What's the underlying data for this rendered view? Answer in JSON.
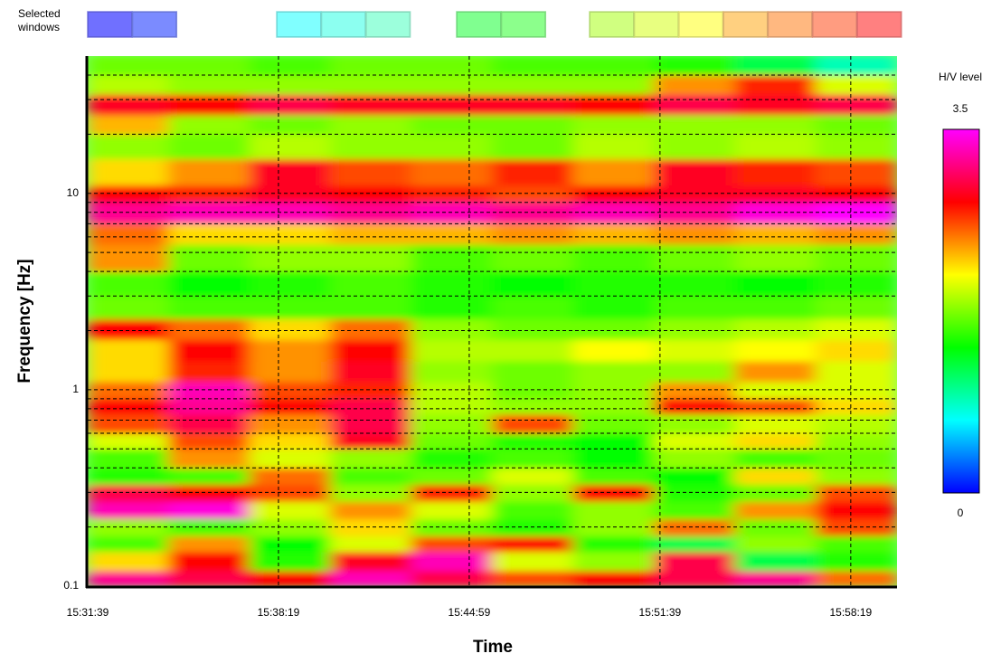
{
  "chart_data": {
    "type": "heatmap",
    "legend_label": "Selected windows",
    "window_colors": [
      [
        "#7070ff",
        "#7b8bff"
      ],
      [
        "#80ffff",
        "#8cfff0",
        "#9cffdc"
      ],
      [
        "#80ff90",
        "#8cff8c"
      ],
      [
        "#d0ff80",
        "#e8ff80",
        "#ffff80",
        "#ffd080",
        "#ffb880",
        "#ff9c80",
        "#ff8080"
      ]
    ],
    "ylabel": "Frequency [Hz]",
    "xlabel": "Time",
    "colorbar_label": "H/V level",
    "xlim": [
      "15:31:39",
      "15:59:56"
    ],
    "xticks": [
      "15:31:39",
      "15:38:19",
      "15:44:59",
      "15:51:39",
      "15:58:19"
    ],
    "ylim": [
      0.1,
      50
    ],
    "yscale": "log",
    "yticks": [
      0.1,
      1,
      10
    ],
    "yminorticks": [
      0.2,
      0.3,
      0.4,
      0.5,
      0.6,
      0.7,
      0.8,
      0.9,
      2,
      3,
      4,
      5,
      6,
      7,
      8,
      9,
      20,
      30,
      40
    ],
    "grid": true,
    "zlim": [
      0,
      3.5
    ],
    "zticks": [
      0,
      3.5
    ],
    "colormap": [
      "#0000ff",
      "#00ffff",
      "#00ff00",
      "#ffff00",
      "#ff0000",
      "#ff00ff"
    ],
    "y_bins": [
      0.1,
      0.12,
      0.15,
      0.18,
      0.22,
      0.27,
      0.33,
      0.4,
      0.5,
      0.6,
      0.75,
      0.9,
      1.1,
      1.4,
      1.8,
      2.3,
      3,
      4,
      5.5,
      7,
      9,
      11,
      15,
      20,
      25,
      32,
      40,
      50
    ],
    "z": [
      [
        3.2,
        3.0,
        2.8,
        3.3,
        3.0,
        2.6,
        2.8,
        3.0,
        3.2,
        2.5
      ],
      [
        2.2,
        2.8,
        1.5,
        2.9,
        3.3,
        2.0,
        1.8,
        3.0,
        1.2,
        1.5
      ],
      [
        1.6,
        2.4,
        1.4,
        2.0,
        2.6,
        2.8,
        1.5,
        1.2,
        1.8,
        1.6
      ],
      [
        1.8,
        1.6,
        1.8,
        2.2,
        1.7,
        1.5,
        1.8,
        2.5,
        1.7,
        2.6
      ],
      [
        3.3,
        3.4,
        2.0,
        2.4,
        2.0,
        1.6,
        1.8,
        1.6,
        2.4,
        2.8
      ],
      [
        3.0,
        2.8,
        2.6,
        1.8,
        2.7,
        1.8,
        2.8,
        1.5,
        1.7,
        2.6
      ],
      [
        1.5,
        1.6,
        2.5,
        1.6,
        1.7,
        2.0,
        1.6,
        1.4,
        2.2,
        1.8
      ],
      [
        1.6,
        2.4,
        2.0,
        1.8,
        1.5,
        1.6,
        1.4,
        1.8,
        1.6,
        1.7
      ],
      [
        2.0,
        2.6,
        2.2,
        2.9,
        1.7,
        1.5,
        1.4,
        2.0,
        2.2,
        1.8
      ],
      [
        2.6,
        3.0,
        2.4,
        3.0,
        1.8,
        2.6,
        1.7,
        1.8,
        2.0,
        1.9
      ],
      [
        2.8,
        3.2,
        2.8,
        3.0,
        1.9,
        1.8,
        1.8,
        2.8,
        2.6,
        2.2
      ],
      [
        2.5,
        3.3,
        2.6,
        2.7,
        1.9,
        1.7,
        1.8,
        2.4,
        2.0,
        2.0
      ],
      [
        2.2,
        2.7,
        2.4,
        2.9,
        1.8,
        1.7,
        1.8,
        1.8,
        2.4,
        2.0
      ],
      [
        2.2,
        2.8,
        2.4,
        2.8,
        1.9,
        1.9,
        2.1,
        2.0,
        2.1,
        2.2
      ],
      [
        2.8,
        2.5,
        2.2,
        2.5,
        1.8,
        1.7,
        1.7,
        1.8,
        1.9,
        2.0
      ],
      [
        1.7,
        1.6,
        1.6,
        1.6,
        1.5,
        1.6,
        1.5,
        1.6,
        1.6,
        1.7
      ],
      [
        1.6,
        1.4,
        1.5,
        1.6,
        1.5,
        1.4,
        1.5,
        1.5,
        1.4,
        1.5
      ],
      [
        2.4,
        1.7,
        1.8,
        1.8,
        1.6,
        1.7,
        1.6,
        1.7,
        1.8,
        1.7
      ],
      [
        2.5,
        2.2,
        2.2,
        2.3,
        2.3,
        2.4,
        2.3,
        2.4,
        2.3,
        2.4
      ],
      [
        3.2,
        3.3,
        3.3,
        3.2,
        3.3,
        3.2,
        3.3,
        3.2,
        3.4,
        3.5
      ],
      [
        2.8,
        2.7,
        2.9,
        2.8,
        2.7,
        2.6,
        2.8,
        2.9,
        2.9,
        2.8
      ],
      [
        2.2,
        2.4,
        2.9,
        2.6,
        2.5,
        2.7,
        2.4,
        2.9,
        2.7,
        2.6
      ],
      [
        1.8,
        1.7,
        1.9,
        1.8,
        1.8,
        1.7,
        1.9,
        1.8,
        1.9,
        1.8
      ],
      [
        2.3,
        1.8,
        1.7,
        1.8,
        1.7,
        1.7,
        1.8,
        1.8,
        1.8,
        1.7
      ],
      [
        2.9,
        2.8,
        3.0,
        2.9,
        2.9,
        2.9,
        2.8,
        3.0,
        2.9,
        3.0
      ],
      [
        1.9,
        1.8,
        1.8,
        1.8,
        1.8,
        1.8,
        1.8,
        2.4,
        2.7,
        2.0
      ],
      [
        1.7,
        1.7,
        1.6,
        1.7,
        1.7,
        1.6,
        1.6,
        1.5,
        1.2,
        0.9
      ]
    ]
  }
}
